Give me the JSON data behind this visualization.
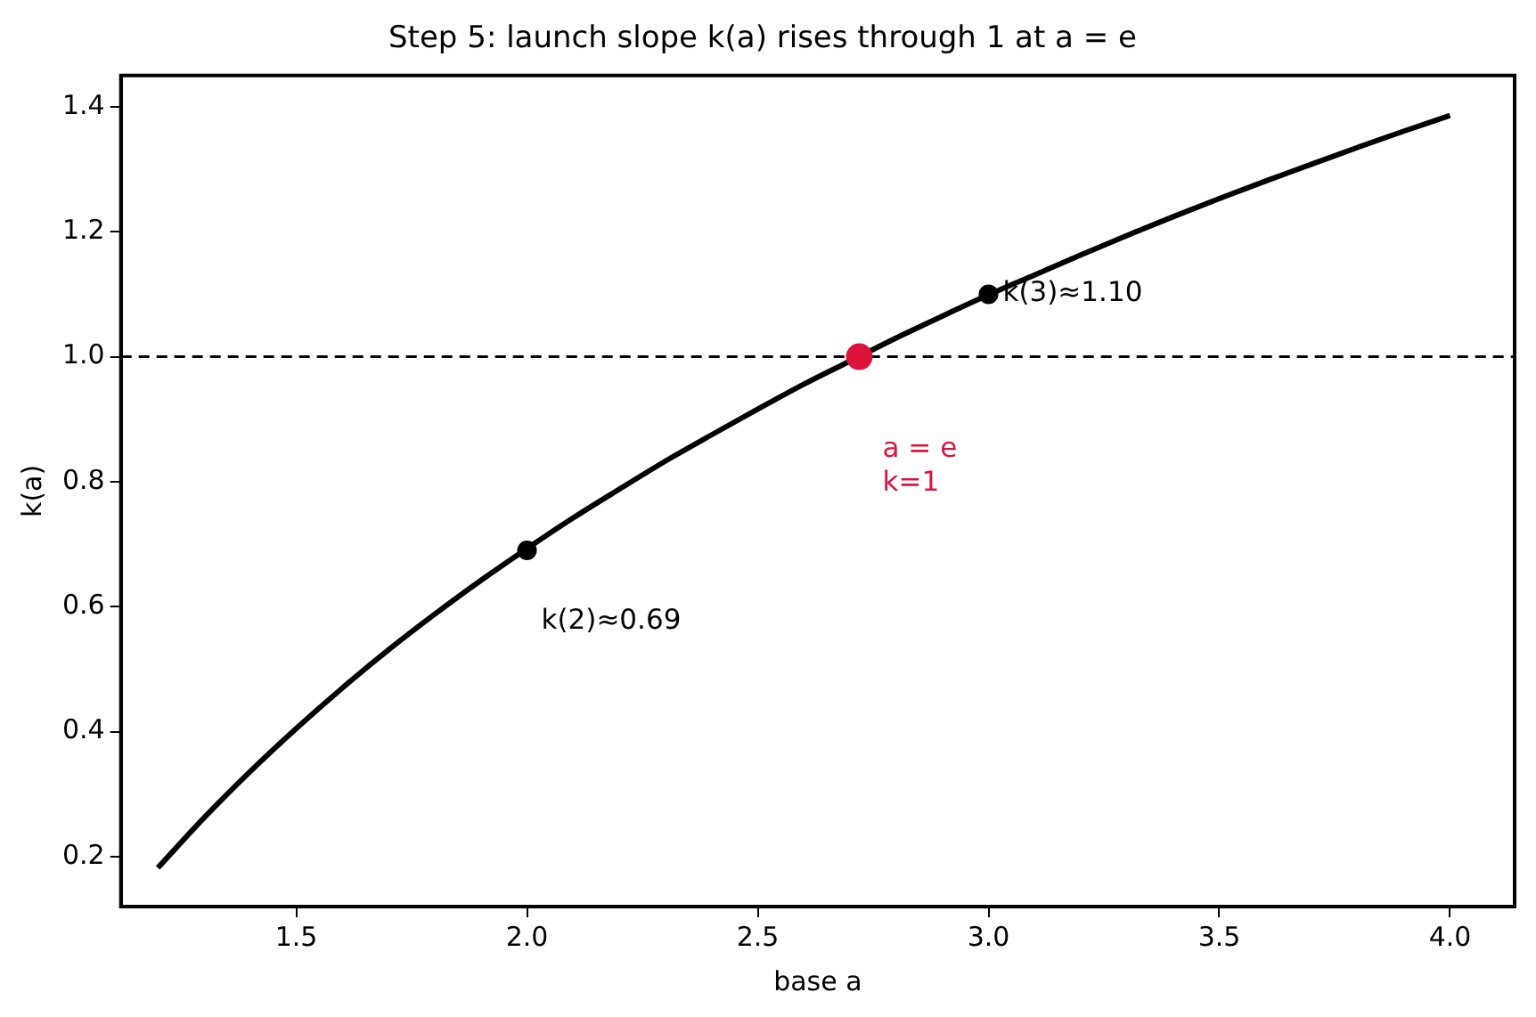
{
  "chart_data": {
    "type": "line",
    "title": "Step 5: launch slope k(a) rises through 1 at a = e",
    "xlabel": "base a",
    "ylabel": "k(a)",
    "xlim": [
      1.12,
      4.14
    ],
    "ylim": [
      0.12,
      1.45
    ],
    "xticks": [
      1.5,
      {
        "value": 2,
        "label": "2.0"
      },
      2.5,
      {
        "value": 3,
        "label": "3.0"
      },
      3.5,
      {
        "value": 4,
        "label": "4.0"
      }
    ],
    "yticks": [
      0.2,
      0.4,
      0.6,
      0.8,
      {
        "value": 1,
        "label": "1.0"
      },
      1.2,
      1.4
    ],
    "grid": false,
    "legend": false,
    "series": [
      {
        "color": "#000000",
        "marker": "none",
        "x": [
          1.2,
          1.3,
          1.4,
          1.5,
          1.6,
          1.7,
          1.8,
          1.9,
          2.0,
          2.1,
          2.2,
          2.3,
          2.4,
          2.5,
          2.6,
          2.7,
          2.8,
          2.9,
          3.0,
          3.1,
          3.2,
          3.3,
          3.4,
          3.5,
          3.6,
          3.7,
          3.8,
          3.9,
          4.0
        ],
        "values": [
          0.182,
          0.262,
          0.336,
          0.405,
          0.47,
          0.531,
          0.588,
          0.642,
          0.693,
          0.742,
          0.788,
          0.833,
          0.875,
          0.916,
          0.956,
          0.993,
          1.03,
          1.065,
          1.099,
          1.131,
          1.163,
          1.194,
          1.224,
          1.253,
          1.281,
          1.308,
          1.335,
          1.361,
          1.386
        ]
      },
      {
        "type": "scatter",
        "color": "#000000",
        "marker": "circle",
        "x": [
          2,
          3
        ],
        "values": [
          0.69,
          1.1
        ]
      },
      {
        "type": "scatter",
        "color": "#dc143c",
        "marker": "circle",
        "x": [
          2.72
        ],
        "values": [
          1.0
        ]
      }
    ],
    "ref_lines": [
      {
        "axis": "y",
        "value": 1,
        "color": "#000000",
        "line_style": "dashed"
      }
    ],
    "annotations": [
      {
        "text": "k(2)≈0.69",
        "x": 2,
        "y": 0.69
      },
      {
        "text": "k(3)≈1.10",
        "x": 3,
        "y": 1.1
      },
      {
        "text": "a = e\nk=1",
        "x": 2.72,
        "y": 1.0
      }
    ]
  }
}
